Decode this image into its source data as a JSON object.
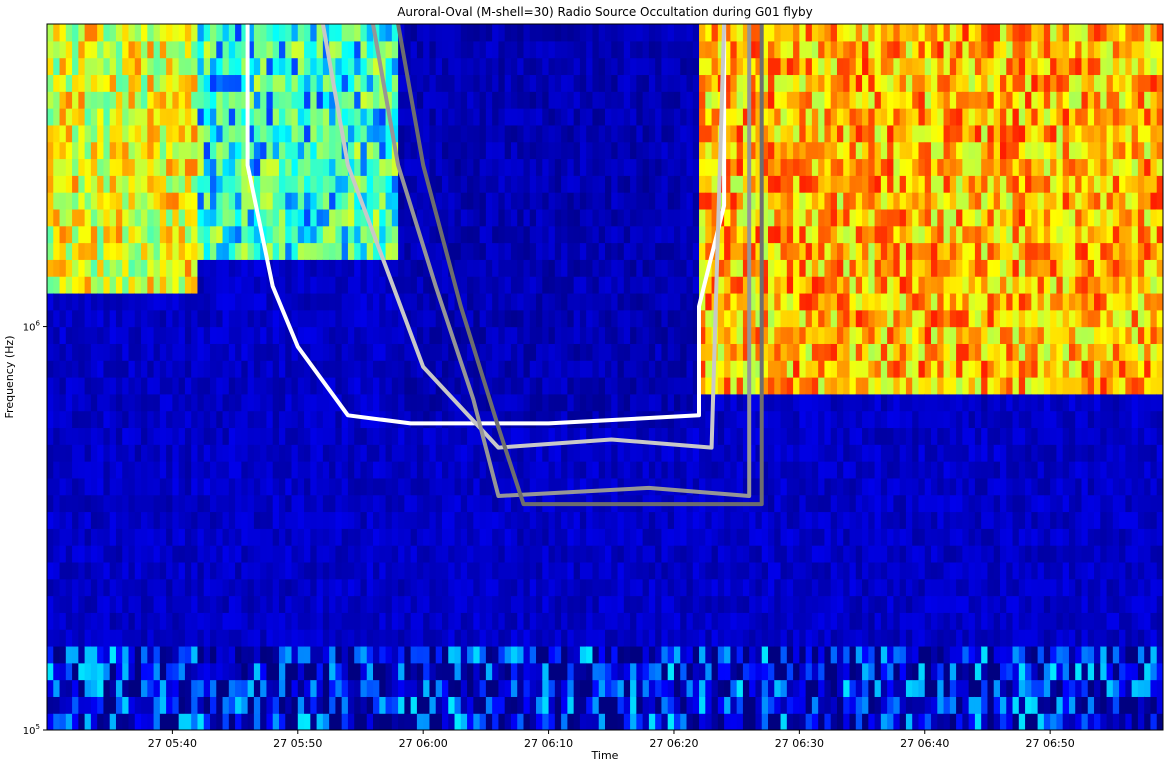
{
  "chart_data": {
    "type": "heatmap",
    "title": "Auroral-Oval (M-shell=30) Radio Source Occultation during G01 flyby",
    "xlabel": "Time",
    "ylabel": "Frequency (Hz)",
    "x_axis": {
      "kind": "time",
      "range": [
        "1996-06-27 05:30",
        "1996-06-27 06:59"
      ],
      "ticks": [
        "27 05:40",
        "27 05:50",
        "27 06:00",
        "27 06:10",
        "27 06:20",
        "27 06:30",
        "27 06:40",
        "27 06:50"
      ],
      "tick_minutes_after_0530": [
        10,
        20,
        30,
        40,
        50,
        60,
        70,
        80
      ]
    },
    "y_axis": {
      "scale": "log",
      "range": [
        100000,
        5600000
      ],
      "ticks": [
        {
          "value": 100000,
          "base": "10",
          "exp": "5"
        },
        {
          "value": 1000000,
          "base": "10",
          "exp": "6"
        }
      ]
    },
    "grid": false,
    "legend": "none",
    "colormap": "jet",
    "colormap_stops": [
      "#000080",
      "#0000ff",
      "#00ffff",
      "#7fff7f",
      "#ffff00",
      "#ff7f00",
      "#ff0000",
      "#800000"
    ],
    "minute_span": 89,
    "log_f_span": [
      5.0,
      6.75
    ],
    "regions": [
      {
        "name": "spectrum-high-left",
        "minutes": [
          0,
          12
        ],
        "log_f": [
          6.1,
          6.75
        ],
        "level": 0.55
      },
      {
        "name": "spectrum-high-left-slope",
        "minutes": [
          12,
          29
        ],
        "log_f": [
          6.15,
          6.75
        ],
        "level": 0.35
      },
      {
        "name": "occulted-gap",
        "minutes": [
          28,
          52
        ],
        "log_f": [
          5.75,
          6.75
        ],
        "level": 0.02
      },
      {
        "name": "spectrum-high-right",
        "minutes": [
          52,
          89
        ],
        "log_f": [
          5.85,
          6.75
        ],
        "level": 0.65
      },
      {
        "name": "band-mid",
        "minutes": [
          0,
          89
        ],
        "log_f": [
          5.48,
          5.52
        ],
        "level": 0.22
      },
      {
        "name": "band-low",
        "minutes": [
          0,
          89
        ],
        "log_f": [
          5.0,
          5.2
        ],
        "level": 0.1
      }
    ],
    "occultation_curves": [
      {
        "color": "#ffffff",
        "points": [
          [
            16,
            6.75
          ],
          [
            16,
            6.4
          ],
          [
            18,
            6.1
          ],
          [
            20,
            5.95
          ],
          [
            24,
            5.78
          ],
          [
            29,
            5.76
          ],
          [
            40,
            5.76
          ],
          [
            52,
            5.78
          ],
          [
            52,
            6.05
          ],
          [
            54,
            6.3
          ],
          [
            54,
            6.75
          ]
        ]
      },
      {
        "color": "#c8c8c8",
        "points": [
          [
            22,
            6.75
          ],
          [
            24,
            6.4
          ],
          [
            27,
            6.15
          ],
          [
            30,
            5.9
          ],
          [
            36,
            5.7
          ],
          [
            45,
            5.72
          ],
          [
            53,
            5.7
          ],
          [
            54,
            6.75
          ]
        ]
      },
      {
        "color": "#969696",
        "points": [
          [
            26,
            6.75
          ],
          [
            28,
            6.4
          ],
          [
            31,
            6.1
          ],
          [
            34,
            5.82
          ],
          [
            36,
            5.58
          ],
          [
            48,
            5.6
          ],
          [
            56,
            5.58
          ],
          [
            56,
            6.75
          ]
        ]
      },
      {
        "color": "#6e6e6e",
        "points": [
          [
            28,
            6.75
          ],
          [
            30,
            6.4
          ],
          [
            33,
            6.05
          ],
          [
            36,
            5.75
          ],
          [
            38,
            5.56
          ],
          [
            57,
            5.56
          ],
          [
            57,
            6.75
          ]
        ]
      }
    ]
  }
}
